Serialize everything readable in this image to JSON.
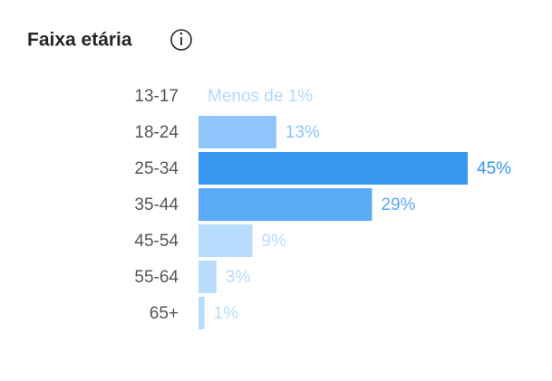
{
  "chart_data": {
    "type": "hbar",
    "title": "Faixa etária",
    "categories": [
      "13-17",
      "18-24",
      "25-34",
      "35-44",
      "45-54",
      "55-64",
      "65+"
    ],
    "values": [
      0,
      13,
      45,
      29,
      9,
      3,
      1
    ],
    "value_labels": [
      "Menos de 1%",
      "13%",
      "45%",
      "29%",
      "9%",
      "3%",
      "1%"
    ],
    "colors": [
      "#b3d9fb",
      "#8ec5fb",
      "#3897f0",
      "#5aaaf5",
      "#b8dcfd",
      "#b8dcfd",
      "#b8dcfd"
    ]
  }
}
